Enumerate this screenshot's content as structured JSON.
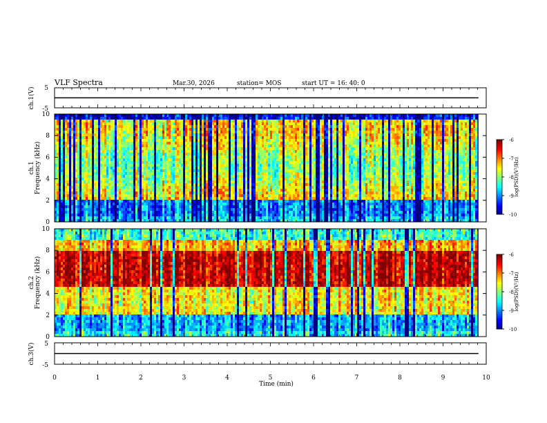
{
  "header": {
    "title": "VLF Spectra",
    "date": "Mar.30, 2026",
    "station": "station= MOS",
    "start": "start  UT =   16: 40: 0"
  },
  "chart_data": [
    {
      "type": "line",
      "name": "ch1-waveform",
      "ylabel": "ch.1(V)",
      "ylim": [
        -5,
        5
      ],
      "yticks": [
        "5",
        "-5"
      ],
      "x_range": [
        0,
        10
      ],
      "series": [
        {
          "x": [
            0,
            9.82
          ],
          "y": [
            0,
            0
          ]
        }
      ]
    },
    {
      "type": "heatmap",
      "name": "ch1-spectrogram",
      "ylabel_line1": "ch.1",
      "ylabel_line2": "Frequency (kHz)",
      "ylim": [
        0,
        10
      ],
      "yticks": [
        "0",
        "2",
        "4",
        "6",
        "8",
        "10"
      ],
      "x_range": [
        0,
        10
      ],
      "data_end_min": 9.82,
      "colorbar": {
        "label": "log(PSD)(V²/Hz)",
        "range": [
          -10,
          -6
        ],
        "ticks": [
          "-6",
          "-7",
          "-8",
          "-9",
          "-10"
        ]
      }
    },
    {
      "type": "heatmap",
      "name": "ch2-spectrogram",
      "ylabel_line1": "ch.2",
      "ylabel_line2": "Frequency (kHz)",
      "ylim": [
        0,
        10
      ],
      "yticks": [
        "0",
        "2",
        "4",
        "6",
        "8",
        "10"
      ],
      "x_range": [
        0,
        10
      ],
      "data_end_min": 9.82,
      "colorbar": {
        "label": "log(PSD)(V²/Hz)",
        "range": [
          -10,
          -6
        ],
        "ticks": [
          "-6",
          "-7",
          "-8",
          "-9",
          "-10"
        ]
      }
    },
    {
      "type": "line",
      "name": "ch3-waveform",
      "ylabel": "ch.3(V)",
      "ylim": [
        -5,
        5
      ],
      "yticks": [
        "5",
        "-5"
      ],
      "x_range": [
        0,
        10
      ],
      "series": [
        {
          "x": [
            0,
            9.82
          ],
          "y": [
            0,
            0
          ]
        }
      ]
    }
  ],
  "x_axis": {
    "label": "Time  (min)",
    "ticks": [
      "0",
      "1",
      "2",
      "3",
      "4",
      "5",
      "6",
      "7",
      "8",
      "9",
      "10"
    ]
  },
  "colors": {
    "background": "#ffffff",
    "axis": "#000000"
  }
}
